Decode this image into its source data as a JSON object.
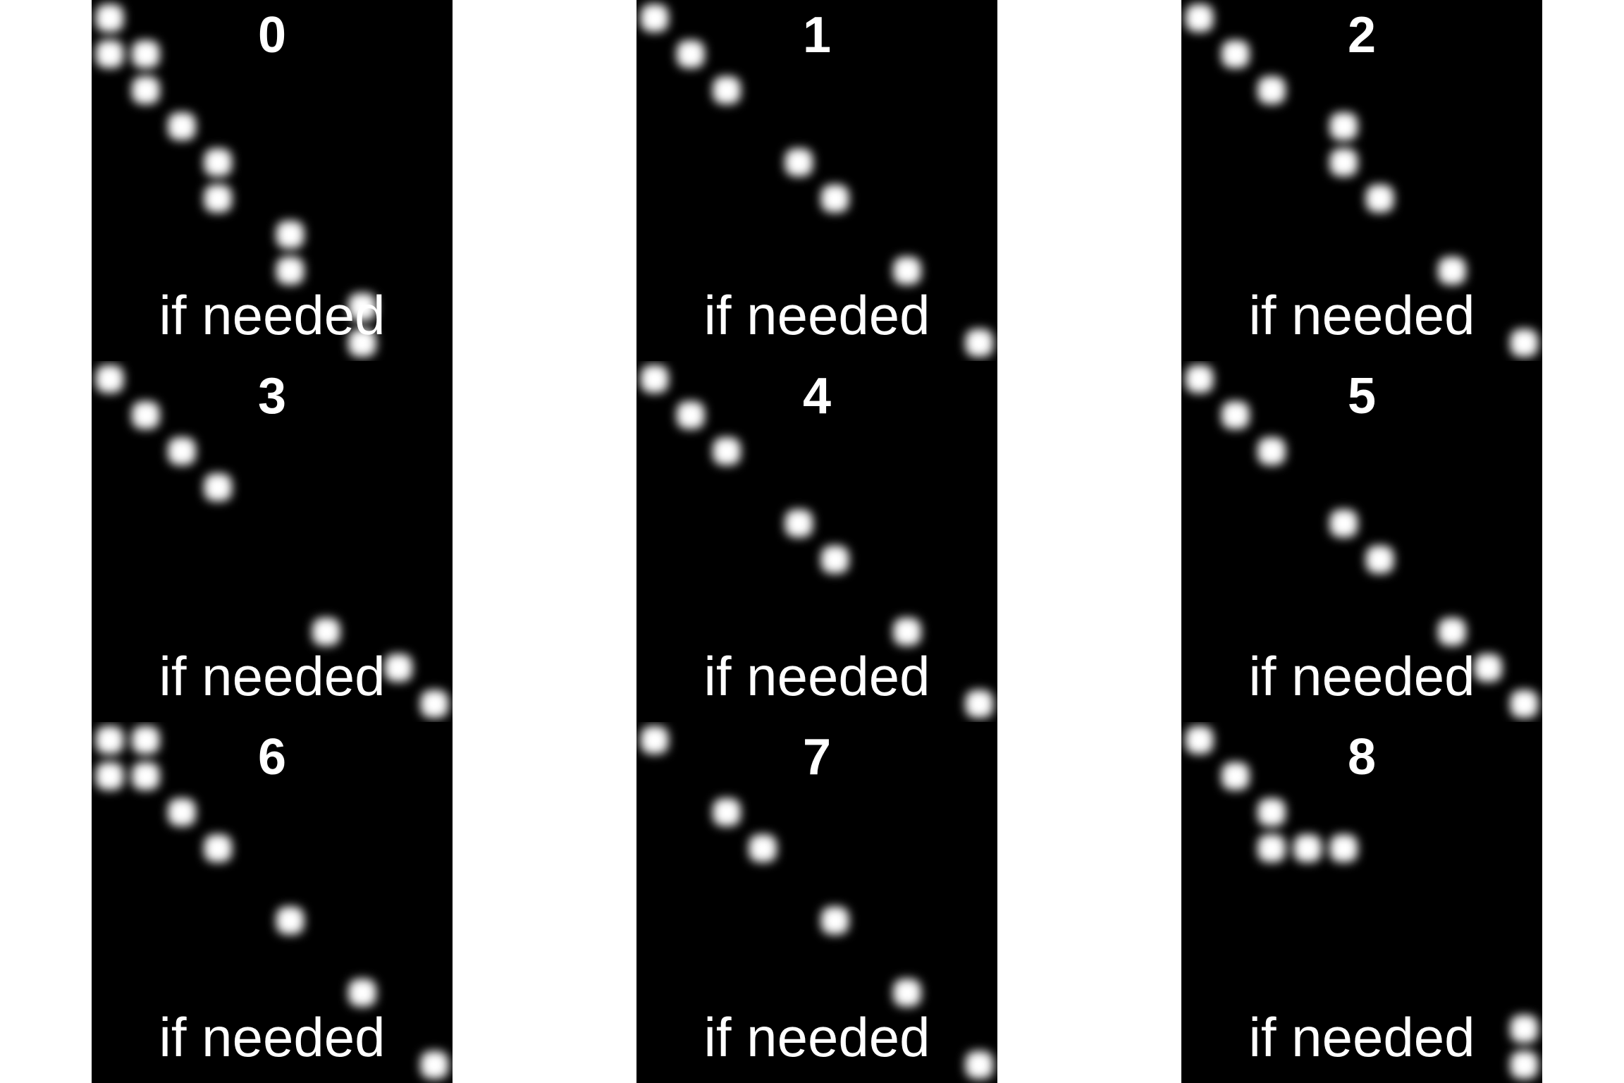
{
  "grid": {
    "rows": 3,
    "columns": 3,
    "panel_color": "#000000",
    "dot_color": "#ffffff",
    "background_color": "#ffffff"
  },
  "panels": [
    {
      "index": 0,
      "number": "0",
      "caption": "if needed",
      "dot_cells": [
        [
          0,
          0
        ],
        [
          0,
          1
        ],
        [
          1,
          1
        ],
        [
          1,
          2
        ],
        [
          2,
          3
        ],
        [
          3,
          4
        ],
        [
          3,
          5
        ],
        [
          5,
          6
        ],
        [
          5,
          7
        ],
        [
          7,
          8
        ],
        [
          7,
          9
        ]
      ]
    },
    {
      "index": 1,
      "number": "1",
      "caption": "if needed",
      "dot_cells": [
        [
          0,
          0
        ],
        [
          1,
          1
        ],
        [
          2,
          2
        ],
        [
          4,
          4
        ],
        [
          5,
          5
        ],
        [
          7,
          7
        ],
        [
          9,
          9
        ]
      ]
    },
    {
      "index": 2,
      "number": "2",
      "caption": "if needed",
      "dot_cells": [
        [
          0,
          0
        ],
        [
          1,
          1
        ],
        [
          2,
          2
        ],
        [
          4,
          3
        ],
        [
          4,
          4
        ],
        [
          5,
          5
        ],
        [
          7,
          7
        ],
        [
          9,
          9
        ]
      ]
    },
    {
      "index": 3,
      "number": "3",
      "caption": "if needed",
      "dot_cells": [
        [
          0,
          0
        ],
        [
          1,
          1
        ],
        [
          2,
          2
        ],
        [
          3,
          3
        ],
        [
          6,
          7
        ],
        [
          8,
          8
        ],
        [
          9,
          9
        ]
      ]
    },
    {
      "index": 4,
      "number": "4",
      "caption": "if needed",
      "dot_cells": [
        [
          0,
          0
        ],
        [
          1,
          1
        ],
        [
          2,
          2
        ],
        [
          4,
          4
        ],
        [
          5,
          5
        ],
        [
          7,
          7
        ],
        [
          9,
          9
        ]
      ]
    },
    {
      "index": 5,
      "number": "5",
      "caption": "if needed",
      "dot_cells": [
        [
          0,
          0
        ],
        [
          1,
          1
        ],
        [
          2,
          2
        ],
        [
          4,
          4
        ],
        [
          5,
          5
        ],
        [
          7,
          7
        ],
        [
          8,
          8
        ],
        [
          9,
          9
        ]
      ]
    },
    {
      "index": 6,
      "number": "6",
      "caption": "if needed",
      "dot_cells": [
        [
          0,
          0
        ],
        [
          1,
          0
        ],
        [
          0,
          1
        ],
        [
          1,
          1
        ],
        [
          2,
          2
        ],
        [
          3,
          3
        ],
        [
          5,
          5
        ],
        [
          7,
          7
        ],
        [
          9,
          9
        ]
      ]
    },
    {
      "index": 7,
      "number": "7",
      "caption": "if needed",
      "dot_cells": [
        [
          0,
          0
        ],
        [
          2,
          2
        ],
        [
          3,
          3
        ],
        [
          5,
          5
        ],
        [
          7,
          7
        ],
        [
          9,
          9
        ]
      ]
    },
    {
      "index": 8,
      "number": "8",
      "caption": "if needed",
      "dot_cells": [
        [
          0,
          0
        ],
        [
          1,
          1
        ],
        [
          2,
          2
        ],
        [
          2,
          3
        ],
        [
          3,
          3
        ],
        [
          4,
          3
        ],
        [
          9,
          8
        ],
        [
          9,
          9
        ]
      ]
    }
  ]
}
